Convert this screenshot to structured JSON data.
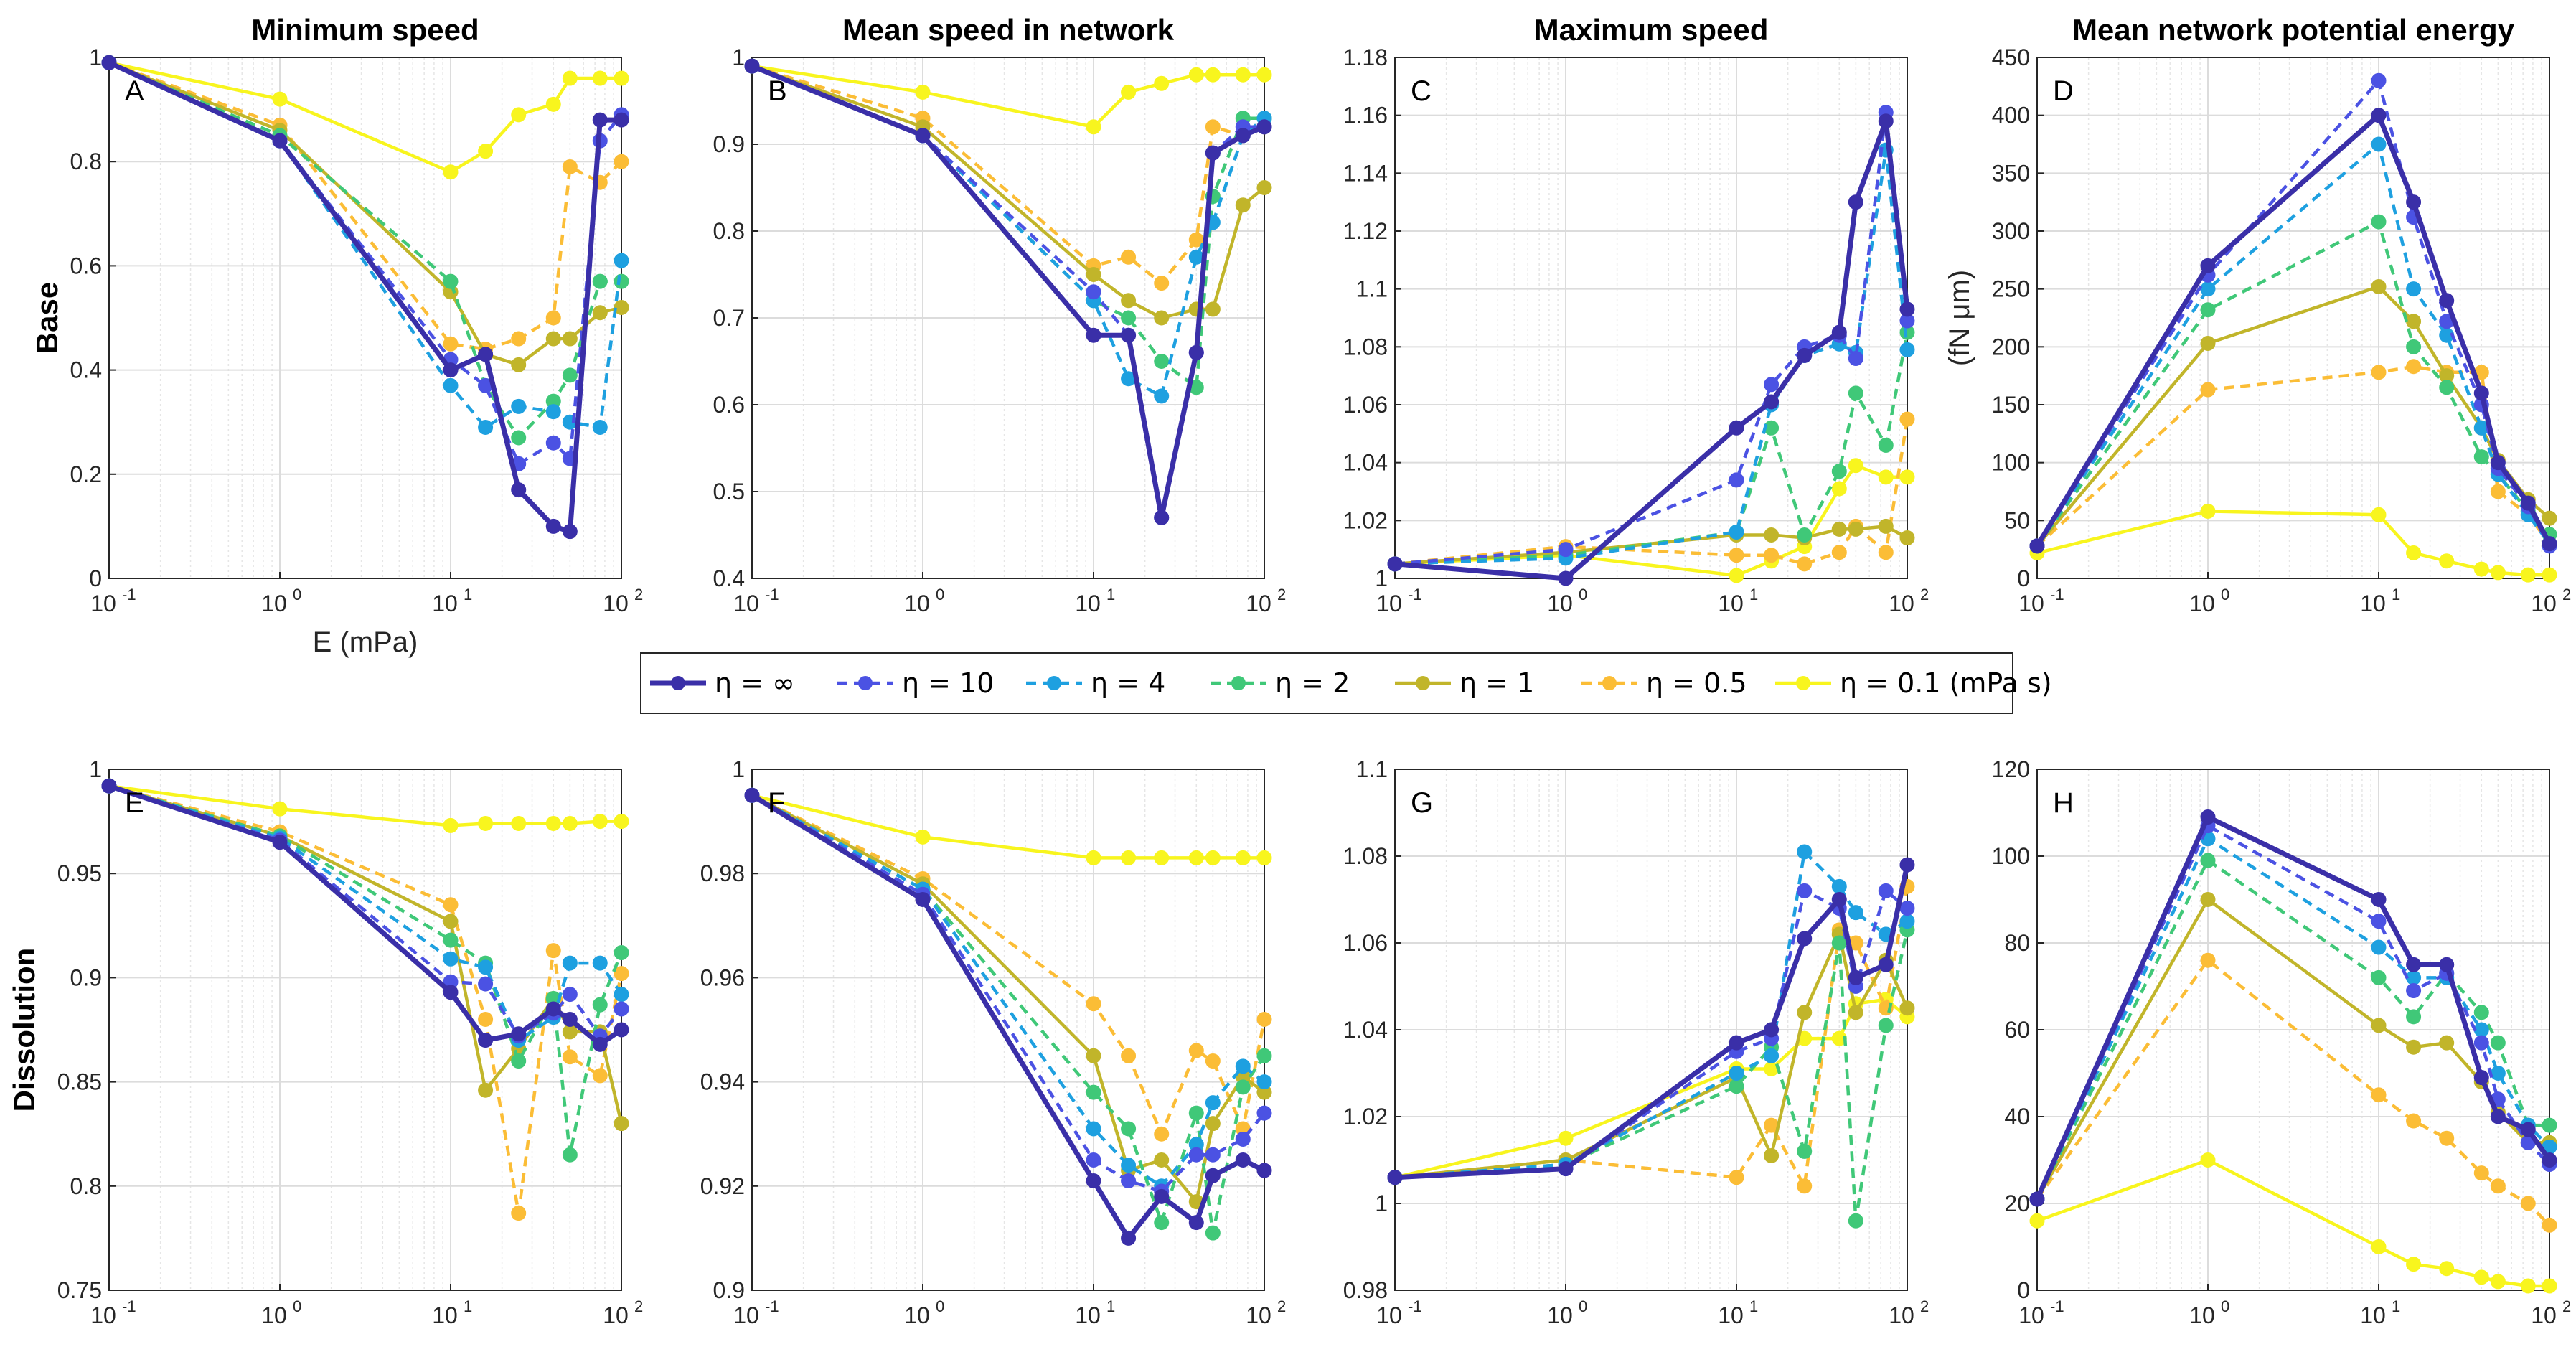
{
  "chart_data": {
    "type": "line",
    "column_titles": [
      "Minimum speed",
      "Mean speed in network",
      "Maximum speed",
      "Mean network potential energy"
    ],
    "row_labels": [
      "Base",
      "Dissolution"
    ],
    "xlabel": "E (mPa)",
    "x_scale": "log",
    "xlim": [
      0.1,
      100
    ],
    "x": [
      0.1,
      1,
      10,
      16,
      25,
      40,
      50,
      75,
      100
    ],
    "x_ticks": [
      {
        "base": "10",
        "exp": "-1"
      },
      {
        "base": "10",
        "exp": "0"
      },
      {
        "base": "10",
        "exp": "1"
      },
      {
        "base": "10",
        "exp": "2"
      }
    ],
    "legend": {
      "entries": [
        "η = ∞",
        "η = 10",
        "η = 4",
        "η = 2",
        "η = 1",
        "η = 0.5",
        "η = 0.1 (mPa s)"
      ],
      "colors": [
        "#3a2fa8",
        "#4b52e3",
        "#1ea0e0",
        "#40c878",
        "#c1b52a",
        "#fbbd36",
        "#f8f51e"
      ],
      "styles": [
        "solid",
        "dashed",
        "dashed",
        "dashed",
        "solid",
        "dashed",
        "solid"
      ],
      "placement": "center, between rows"
    },
    "panels": [
      {
        "label": "A",
        "ylabel": "",
        "ylim": [
          0,
          1
        ],
        "yticks": [
          "0",
          "0.2",
          "0.4",
          "0.6",
          "0.8",
          "1"
        ],
        "series": [
          {
            "name": "η = ∞",
            "values": [
              0.99,
              0.84,
              0.4,
              0.43,
              0.17,
              0.1,
              0.09,
              0.88,
              0.88
            ]
          },
          {
            "name": "η = 10",
            "values": [
              0.99,
              0.84,
              0.42,
              0.37,
              0.22,
              0.26,
              0.23,
              0.84,
              0.89
            ]
          },
          {
            "name": "η = 4",
            "values": [
              0.99,
              0.84,
              0.37,
              0.29,
              0.33,
              0.32,
              0.3,
              0.29,
              0.61
            ]
          },
          {
            "name": "η = 2",
            "values": [
              0.99,
              0.85,
              0.57,
              0.37,
              0.27,
              0.34,
              0.39,
              0.57,
              0.57
            ]
          },
          {
            "name": "η = 1",
            "values": [
              0.99,
              0.86,
              0.55,
              0.43,
              0.41,
              0.46,
              0.46,
              0.51,
              0.52
            ]
          },
          {
            "name": "η = 0.5",
            "values": [
              0.99,
              0.87,
              0.45,
              0.44,
              0.46,
              0.5,
              0.79,
              0.76,
              0.8
            ]
          },
          {
            "name": "η = 0.1",
            "values": [
              0.99,
              0.92,
              0.78,
              0.82,
              0.89,
              0.91,
              0.96,
              0.96,
              0.96
            ]
          }
        ]
      },
      {
        "label": "B",
        "ylabel": "",
        "ylim": [
          0.4,
          1
        ],
        "yticks": [
          "0.4",
          "0.5",
          "0.6",
          "0.7",
          "0.8",
          "0.9",
          "1"
        ],
        "series": [
          {
            "name": "η = ∞",
            "values": [
              0.99,
              0.91,
              0.68,
              0.68,
              0.47,
              0.66,
              0.89,
              0.91,
              0.92
            ]
          },
          {
            "name": "η = 10",
            "values": [
              0.99,
              0.91,
              0.73,
              0.68,
              0.47,
              0.66,
              0.89,
              0.92,
              0.92
            ]
          },
          {
            "name": "η = 4",
            "values": [
              0.99,
              0.91,
              0.72,
              0.63,
              0.61,
              0.77,
              0.81,
              0.91,
              0.93
            ]
          },
          {
            "name": "η = 2",
            "values": [
              0.99,
              0.91,
              0.72,
              0.7,
              0.65,
              0.62,
              0.84,
              0.93,
              0.93
            ]
          },
          {
            "name": "η = 1",
            "values": [
              0.99,
              0.92,
              0.75,
              0.72,
              0.7,
              0.71,
              0.71,
              0.83,
              0.85
            ]
          },
          {
            "name": "η = 0.5",
            "values": [
              0.99,
              0.93,
              0.76,
              0.77,
              0.74,
              0.79,
              0.92,
              0.91,
              0.92
            ]
          },
          {
            "name": "η = 0.1",
            "values": [
              0.99,
              0.96,
              0.92,
              0.96,
              0.97,
              0.98,
              0.98,
              0.98,
              0.98
            ]
          }
        ]
      },
      {
        "label": "C",
        "ylabel": "",
        "ylim": [
          1,
          1.18
        ],
        "yticks": [
          "1",
          "1.02",
          "1.04",
          "1.06",
          "1.08",
          "1.1",
          "1.12",
          "1.14",
          "1.16",
          "1.18"
        ],
        "series": [
          {
            "name": "η = ∞",
            "values": [
              1.005,
              1.0,
              1.052,
              1.061,
              1.077,
              1.085,
              1.13,
              1.158,
              1.093
            ]
          },
          {
            "name": "η = 10",
            "values": [
              1.005,
              1.01,
              1.034,
              1.067,
              1.08,
              1.084,
              1.076,
              1.161,
              1.089
            ]
          },
          {
            "name": "η = 4",
            "values": [
              1.005,
              1.007,
              1.016,
              1.06,
              1.077,
              1.081,
              1.078,
              1.148,
              1.079
            ]
          },
          {
            "name": "η = 2",
            "values": [
              1.005,
              1.008,
              1.016,
              1.052,
              1.015,
              1.037,
              1.064,
              1.046,
              1.085
            ]
          },
          {
            "name": "η = 1",
            "values": [
              1.005,
              1.009,
              1.015,
              1.015,
              1.014,
              1.017,
              1.017,
              1.018,
              1.014
            ]
          },
          {
            "name": "η = 0.5",
            "values": [
              1.005,
              1.011,
              1.008,
              1.008,
              1.005,
              1.009,
              1.018,
              1.009,
              1.055
            ]
          },
          {
            "name": "η = 0.1",
            "values": [
              1.005,
              1.008,
              1.001,
              1.006,
              1.011,
              1.031,
              1.039,
              1.035,
              1.035
            ]
          }
        ]
      },
      {
        "label": "D",
        "ylabel": "(fN μm)",
        "ylim": [
          0,
          450
        ],
        "yticks": [
          "0",
          "50",
          "100",
          "150",
          "200",
          "250",
          "300",
          "350",
          "400",
          "450"
        ],
        "series": [
          {
            "name": "η = ∞",
            "values": [
              28,
              270,
              400,
              325,
              240,
              160,
              100,
              65,
              30
            ]
          },
          {
            "name": "η = 10",
            "values": [
              28,
              262,
              430,
              312,
              222,
              150,
              95,
              62,
              28
            ]
          },
          {
            "name": "η = 4",
            "values": [
              28,
              250,
              375,
              250,
              210,
              130,
              90,
              55,
              30
            ]
          },
          {
            "name": "η = 2",
            "values": [
              28,
              232,
              308,
              200,
              165,
              105,
              90,
              58,
              38
            ]
          },
          {
            "name": "η = 1",
            "values": [
              28,
              203,
              252,
              222,
              175,
              130,
              102,
              68,
              52
            ]
          },
          {
            "name": "η = 0.5",
            "values": [
              28,
              163,
              178,
              183,
              178,
              178,
              75,
              55,
              30
            ]
          },
          {
            "name": "η = 0.1",
            "values": [
              22,
              58,
              55,
              22,
              15,
              8,
              5,
              3,
              3
            ]
          }
        ]
      },
      {
        "label": "E",
        "ylabel": "",
        "ylim": [
          0.75,
          1
        ],
        "yticks": [
          "0.75",
          "0.8",
          "0.85",
          "0.9",
          "0.95",
          "1"
        ],
        "series": [
          {
            "name": "η = ∞",
            "values": [
              0.992,
              0.965,
              0.893,
              0.87,
              0.873,
              0.885,
              0.88,
              0.868,
              0.875
            ]
          },
          {
            "name": "η = 10",
            "values": [
              0.992,
              0.966,
              0.898,
              0.897,
              0.872,
              0.883,
              0.892,
              0.872,
              0.885
            ]
          },
          {
            "name": "η = 4",
            "values": [
              0.992,
              0.967,
              0.909,
              0.905,
              0.87,
              0.881,
              0.907,
              0.907,
              0.892
            ]
          },
          {
            "name": "η = 2",
            "values": [
              0.992,
              0.968,
              0.918,
              0.907,
              0.86,
              0.89,
              0.815,
              0.887,
              0.912
            ]
          },
          {
            "name": "η = 1",
            "values": [
              0.992,
              0.968,
              0.927,
              0.846,
              0.866,
              0.89,
              0.874,
              0.874,
              0.83
            ]
          },
          {
            "name": "η = 0.5",
            "values": [
              0.992,
              0.97,
              0.935,
              0.88,
              0.787,
              0.913,
              0.862,
              0.853,
              0.902
            ]
          },
          {
            "name": "η = 0.1",
            "values": [
              0.992,
              0.981,
              0.973,
              0.974,
              0.974,
              0.974,
              0.974,
              0.975,
              0.975
            ]
          }
        ]
      },
      {
        "label": "F",
        "ylabel": "",
        "ylim": [
          0.9,
          1
        ],
        "yticks": [
          "0.9",
          "0.92",
          "0.94",
          "0.96",
          "0.98",
          "1"
        ],
        "series": [
          {
            "name": "η = ∞",
            "values": [
              0.995,
              0.975,
              0.921,
              0.91,
              0.918,
              0.913,
              0.922,
              0.925,
              0.923
            ]
          },
          {
            "name": "η = 10",
            "values": [
              0.995,
              0.976,
              0.925,
              0.921,
              0.919,
              0.926,
              0.926,
              0.929,
              0.934
            ]
          },
          {
            "name": "η = 4",
            "values": [
              0.995,
              0.977,
              0.931,
              0.924,
              0.92,
              0.928,
              0.936,
              0.943,
              0.94
            ]
          },
          {
            "name": "η = 2",
            "values": [
              0.995,
              0.977,
              0.938,
              0.931,
              0.913,
              0.934,
              0.911,
              0.939,
              0.945
            ]
          },
          {
            "name": "η = 1",
            "values": [
              0.995,
              0.978,
              0.945,
              0.923,
              0.925,
              0.917,
              0.932,
              0.941,
              0.938
            ]
          },
          {
            "name": "η = 0.5",
            "values": [
              0.995,
              0.979,
              0.955,
              0.945,
              0.93,
              0.946,
              0.944,
              0.931,
              0.952
            ]
          },
          {
            "name": "η = 0.1",
            "values": [
              0.995,
              0.987,
              0.983,
              0.983,
              0.983,
              0.983,
              0.983,
              0.983,
              0.983
            ]
          }
        ]
      },
      {
        "label": "G",
        "ylabel": "",
        "ylim": [
          0.98,
          1.1
        ],
        "yticks": [
          "0.98",
          "1",
          "1.02",
          "1.04",
          "1.06",
          "1.08",
          "1.1"
        ],
        "series": [
          {
            "name": "η = ∞",
            "values": [
              1.006,
              1.008,
              1.037,
              1.04,
              1.061,
              1.07,
              1.052,
              1.055,
              1.078
            ]
          },
          {
            "name": "η = 10",
            "values": [
              1.006,
              1.008,
              1.035,
              1.038,
              1.072,
              1.068,
              1.05,
              1.072,
              1.068
            ]
          },
          {
            "name": "η = 4",
            "values": [
              1.006,
              1.009,
              1.03,
              1.034,
              1.081,
              1.073,
              1.067,
              1.062,
              1.065
            ]
          },
          {
            "name": "η = 2",
            "values": [
              1.006,
              1.009,
              1.027,
              1.036,
              1.012,
              1.06,
              0.996,
              1.041,
              1.063
            ]
          },
          {
            "name": "η = 1",
            "values": [
              1.006,
              1.01,
              1.029,
              1.011,
              1.044,
              1.062,
              1.044,
              1.056,
              1.045
            ]
          },
          {
            "name": "η = 0.5",
            "values": [
              1.006,
              1.01,
              1.006,
              1.018,
              1.004,
              1.063,
              1.06,
              1.045,
              1.073
            ]
          },
          {
            "name": "η = 0.1",
            "values": [
              1.006,
              1.015,
              1.031,
              1.031,
              1.038,
              1.038,
              1.046,
              1.047,
              1.043
            ]
          }
        ]
      },
      {
        "label": "H",
        "ylabel": "",
        "ylim": [
          0,
          120
        ],
        "yticks": [
          "0",
          "20",
          "40",
          "60",
          "80",
          "100",
          "120"
        ],
        "series": [
          {
            "name": "η = ∞",
            "values": [
              21,
              109,
              90,
              75,
              75,
              49,
              40,
              37,
              30
            ]
          },
          {
            "name": "η = 10",
            "values": [
              21,
              107,
              85,
              69,
              73,
              57,
              44,
              34,
              29
            ]
          },
          {
            "name": "η = 4",
            "values": [
              21,
              104,
              79,
              72,
              72,
              60,
              50,
              38,
              33
            ]
          },
          {
            "name": "η = 2",
            "values": [
              21,
              99,
              72,
              63,
              73,
              64,
              57,
              38,
              38
            ]
          },
          {
            "name": "η = 1",
            "values": [
              21,
              90,
              61,
              56,
              57,
              48,
              41,
              34,
              34
            ]
          },
          {
            "name": "η = 0.5",
            "values": [
              21,
              76,
              45,
              39,
              35,
              27,
              24,
              20,
              15
            ]
          },
          {
            "name": "η = 0.1",
            "values": [
              16,
              30,
              10,
              6,
              5,
              3,
              2,
              1,
              1
            ]
          }
        ]
      }
    ]
  }
}
